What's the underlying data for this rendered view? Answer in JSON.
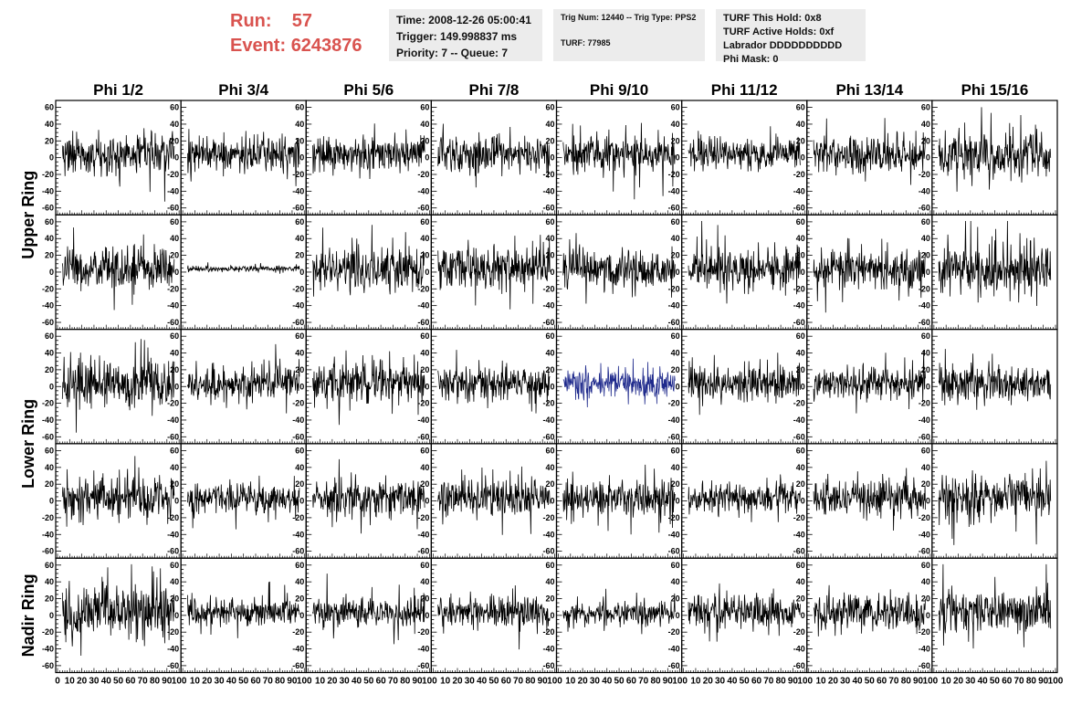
{
  "header": {
    "run_label": "Run:",
    "run_value": "57",
    "event_label": "Event:",
    "event_value": "6243876"
  },
  "info_time": {
    "time": "Time: 2008-12-26 05:00:41",
    "trigger": "Trigger: 149.998837 ms",
    "priority": "Priority: 7 -- Queue: 7"
  },
  "info_trig": {
    "trig": "Trig Num: 12440 -- Trig Type: PPS2",
    "turf": "TURF: 77985"
  },
  "info_turf": {
    "this_hold": "TURF This Hold: 0x8",
    "active_holds": "TURF Active Holds: 0xf",
    "labrador": "Labrador DDDDDDDDDD",
    "phi_mask": "Phi Mask: 0"
  },
  "colors": {
    "trace_default": "#000000",
    "trace_highlight": "#1f2a8c",
    "header_red": "#d9534f",
    "info_box_bg": "#ececec"
  },
  "chart_data": {
    "type": "line",
    "columns": [
      "Phi 1/2",
      "Phi 3/4",
      "Phi 5/6",
      "Phi 7/8",
      "Phi 9/10",
      "Phi 11/12",
      "Phi 13/14",
      "Phi 15/16"
    ],
    "rings": [
      {
        "name": "Upper Ring",
        "rows": [
          0,
          1
        ]
      },
      {
        "name": "Lower Ring",
        "rows": [
          2,
          3
        ]
      },
      {
        "name": "Nadir Ring",
        "rows": [
          4
        ]
      }
    ],
    "ylim": [
      -65,
      65
    ],
    "y_ticks": [
      -60,
      -40,
      -20,
      0,
      20,
      40,
      60
    ],
    "xlim": [
      0,
      100
    ],
    "x_ticks": [
      0,
      10,
      20,
      30,
      40,
      50,
      60,
      70,
      80,
      90,
      100
    ],
    "samples": 260,
    "grid": false,
    "amplitudes": [
      [
        22,
        20,
        18,
        19,
        20,
        16,
        20,
        24
      ],
      [
        20,
        3,
        22,
        22,
        22,
        22,
        20,
        28
      ],
      [
        25,
        18,
        20,
        18,
        16,
        18,
        18,
        20
      ],
      [
        22,
        16,
        18,
        20,
        18,
        16,
        18,
        24
      ],
      [
        28,
        15,
        16,
        16,
        12,
        18,
        20,
        22
      ]
    ],
    "highlight": [
      {
        "row": 2,
        "col": 4
      }
    ]
  }
}
